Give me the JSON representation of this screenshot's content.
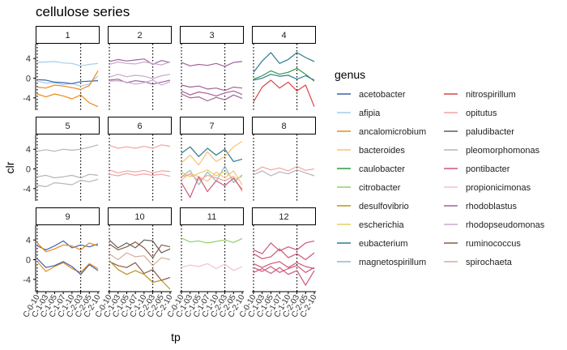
{
  "chart_data": {
    "type": "line",
    "title": "cellulose series",
    "xlabel": "tp",
    "ylabel": "clr",
    "ylim": [
      -6.5,
      7
    ],
    "y_ticks": [
      -4,
      0,
      4
    ],
    "x_categories": [
      "C-0-10",
      "C-1-03",
      "C-1-05",
      "C-1-07",
      "C-1-10",
      "C-2-03",
      "C-2-05",
      "C-2-10"
    ],
    "x_tick_labels": [
      "C-0-10",
      "C-1-03",
      "C-1-05",
      "C-1-07",
      "C-1-10",
      "C-2-03",
      "C-2-05",
      "C-2-10"
    ],
    "vlines": [
      "C-0-10",
      "C-2-03"
    ],
    "legend": {
      "title": "genus",
      "entries": [
        {
          "label": "acetobacter",
          "color": "#3B62A8"
        },
        {
          "label": "afipia",
          "color": "#A6CCE8"
        },
        {
          "label": "ancalomicrobium",
          "color": "#EE8A1A"
        },
        {
          "label": "bacteroides",
          "color": "#F8C27A"
        },
        {
          "label": "caulobacter",
          "color": "#2E9A44"
        },
        {
          "label": "citrobacter",
          "color": "#92D06A"
        },
        {
          "label": "desulfovibrio",
          "color": "#B8951E"
        },
        {
          "label": "escherichia",
          "color": "#E6D060"
        },
        {
          "label": "eubacterium",
          "color": "#2C7B8F"
        },
        {
          "label": "magnetospirillum",
          "color": "#8EBCC6"
        },
        {
          "label": "nitrospirillum",
          "color": "#D94646"
        },
        {
          "label": "opitutus",
          "color": "#F4A3A3"
        },
        {
          "label": "paludibacter",
          "color": "#5E5E5E"
        },
        {
          "label": "pleomorphomonas",
          "color": "#B5B5B5"
        },
        {
          "label": "pontibacter",
          "color": "#CF5778"
        },
        {
          "label": "propionicimonas",
          "color": "#F5BFD0"
        },
        {
          "label": "rhodoblastus",
          "color": "#A0649A"
        },
        {
          "label": "rhodopseudomonas",
          "color": "#C9A8CC"
        },
        {
          "label": "ruminococcus",
          "color": "#8A5A48"
        },
        {
          "label": "spirochaeta",
          "color": "#D4AE9C"
        }
      ]
    },
    "panels": [
      {
        "label": "1",
        "series": [
          {
            "genus": "afipia",
            "values": [
              3.2,
              3.3,
              3.4,
              3.1,
              3.0,
              2.5,
              2.8,
              3.0
            ]
          },
          {
            "genus": "afipia",
            "values": [
              -0.6,
              -1.0,
              -0.9,
              -1.3,
              -1.1,
              -1.6,
              -1.2,
              0.5
            ]
          },
          {
            "genus": "acetobacter",
            "values": [
              -0.3,
              -0.4,
              -0.8,
              -0.9,
              -1.1,
              -0.7,
              -0.6,
              -0.5
            ]
          },
          {
            "genus": "ancalomicrobium",
            "values": [
              -1.8,
              -2.0,
              -1.4,
              -1.6,
              -1.9,
              -2.3,
              -1.5,
              1.5
            ]
          },
          {
            "genus": "ancalomicrobium",
            "values": [
              -3.2,
              -3.8,
              -3.2,
              -3.6,
              -4.2,
              -3.4,
              -5.0,
              -5.8
            ]
          }
        ]
      },
      {
        "label": "2",
        "series": [
          {
            "genus": "rhodoblastus",
            "values": [
              3.4,
              3.8,
              3.5,
              3.7,
              3.9,
              2.8,
              3.6,
              3.2
            ]
          },
          {
            "genus": "rhodopseudomonas",
            "values": [
              2.8,
              3.3,
              3.0,
              2.9,
              3.3,
              3.0,
              2.7,
              3.3
            ]
          },
          {
            "genus": "rhodopseudomonas",
            "values": [
              0.2,
              0.8,
              0.3,
              0.6,
              0.4,
              -0.1,
              0.5,
              0.8
            ]
          },
          {
            "genus": "rhodoblastus",
            "values": [
              -0.4,
              -0.2,
              -0.9,
              -0.5,
              -0.7,
              -1.2,
              -0.8,
              -0.4
            ]
          },
          {
            "genus": "rhodopseudomonas",
            "values": [
              -0.6,
              -0.5,
              -0.8,
              -1.2,
              -0.9,
              -0.4,
              -1.4,
              -0.7
            ]
          }
        ]
      },
      {
        "label": "3",
        "series": [
          {
            "genus": "rhodoblastus",
            "values": [
              3.2,
              2.5,
              2.8,
              2.6,
              3.0,
              2.4,
              3.2,
              3.4
            ]
          },
          {
            "genus": "rhodoblastus",
            "values": [
              -1.4,
              -1.8,
              -1.6,
              -2.2,
              -2.0,
              -2.5,
              -1.8,
              -2.0
            ]
          },
          {
            "genus": "rhodoblastus",
            "values": [
              -2.6,
              -3.4,
              -2.8,
              -3.1,
              -3.6,
              -3.0,
              -2.6,
              -3.3
            ]
          },
          {
            "genus": "rhodoblastus",
            "values": [
              -3.2,
              -4.0,
              -3.8,
              -4.6,
              -3.9,
              -4.4,
              -3.4,
              -4.1
            ]
          }
        ]
      },
      {
        "label": "4",
        "series": [
          {
            "genus": "eubacterium",
            "values": [
              1.2,
              3.5,
              5.2,
              3.0,
              3.8,
              5.2,
              4.2,
              3.4
            ]
          },
          {
            "genus": "caulobacter",
            "values": [
              -0.2,
              0.5,
              1.5,
              0.8,
              1.2,
              2.0,
              0.8,
              -0.6
            ]
          },
          {
            "genus": "eubacterium",
            "values": [
              -0.4,
              0.0,
              0.8,
              0.4,
              0.6,
              -0.2,
              0.5,
              -0.4
            ]
          },
          {
            "genus": "nitrospirillum",
            "values": [
              -4.8,
              -1.8,
              -0.4,
              -2.0,
              -0.8,
              -2.6,
              -1.4,
              -5.8
            ]
          }
        ]
      },
      {
        "label": "5",
        "series": [
          {
            "genus": "pleomorphomonas",
            "values": [
              3.6,
              3.9,
              3.6,
              4.0,
              3.8,
              4.0,
              4.4,
              4.9
            ]
          },
          {
            "genus": "pleomorphomonas",
            "values": [
              -1.6,
              -1.3,
              -1.8,
              -1.6,
              -1.3,
              -1.8,
              -1.1,
              -1.3
            ]
          },
          {
            "genus": "pleomorphomonas",
            "values": [
              -3.3,
              -3.6,
              -2.8,
              -3.0,
              -3.2,
              -2.3,
              -2.6,
              -2.1
            ]
          }
        ]
      },
      {
        "label": "6",
        "series": [
          {
            "genus": "opitutus",
            "values": [
              4.8,
              4.2,
              4.5,
              4.2,
              4.6,
              4.2,
              4.9,
              4.6
            ]
          },
          {
            "genus": "opitutus",
            "values": [
              -0.2,
              -0.8,
              -0.4,
              -0.6,
              -0.3,
              -0.8,
              -0.4,
              -0.5
            ]
          },
          {
            "genus": "opitutus",
            "values": [
              -1.1,
              -1.4,
              -0.9,
              -1.3,
              -1.0,
              -1.3,
              -1.1,
              -1.5
            ]
          }
        ]
      },
      {
        "label": "7",
        "series": [
          {
            "genus": "eubacterium",
            "values": [
              3.2,
              4.5,
              2.5,
              4.2,
              2.8,
              4.0,
              1.5,
              2.0
            ]
          },
          {
            "genus": "bacteroides",
            "values": [
              1.2,
              2.8,
              0.8,
              3.5,
              1.5,
              2.5,
              4.5,
              5.6
            ]
          },
          {
            "genus": "magnetospirillum",
            "values": [
              -1.6,
              -0.3,
              -3.2,
              -0.6,
              -2.5,
              0.6,
              -2.8,
              -1.2
            ]
          },
          {
            "genus": "bacteroides",
            "values": [
              -2.2,
              -0.9,
              -1.6,
              -2.5,
              -0.6,
              -1.8,
              -0.4,
              -3.2
            ]
          },
          {
            "genus": "escherichia",
            "values": [
              -0.6,
              -1.6,
              -0.9,
              -0.2,
              -1.4,
              -0.5,
              -2.0,
              -1.6
            ]
          },
          {
            "genus": "opitutus",
            "values": [
              -1.6,
              -1.1,
              -2.3,
              -1.3,
              -1.8,
              -2.4,
              -1.5,
              -4.6
            ]
          },
          {
            "genus": "pontibacter",
            "values": [
              -2.8,
              -5.8,
              -1.6,
              -4.6,
              -2.4,
              -3.4,
              -1.9,
              -4.2
            ]
          }
        ]
      },
      {
        "label": "8",
        "series": [
          {
            "genus": "opitutus",
            "values": [
              -0.6,
              0.4,
              -0.2,
              0.2,
              -0.4,
              0.5,
              -0.3,
              0.0
            ]
          },
          {
            "genus": "pleomorphomonas",
            "values": [
              -1.2,
              -0.4,
              -1.4,
              -0.6,
              -1.0,
              -0.2,
              -0.8,
              -1.4
            ]
          }
        ]
      },
      {
        "label": "9",
        "series": [
          {
            "genus": "acetobacter",
            "values": [
              2.8,
              2.0,
              2.8,
              3.8,
              2.4,
              3.0,
              2.6,
              3.2
            ]
          },
          {
            "genus": "ancalomicrobium",
            "values": [
              3.4,
              1.6,
              2.2,
              3.0,
              2.8,
              2.0,
              3.4,
              2.8
            ]
          },
          {
            "genus": "ancalomicrobium",
            "values": [
              -0.4,
              -2.4,
              -1.4,
              -0.6,
              -1.8,
              -2.6,
              -0.8,
              -1.8
            ]
          },
          {
            "genus": "acetobacter",
            "values": [
              0.2,
              -1.6,
              -1.2,
              -0.4,
              -1.4,
              -3.0,
              -1.0,
              -2.2
            ]
          }
        ]
      },
      {
        "label": "10",
        "series": [
          {
            "genus": "paludibacter",
            "values": [
              4.0,
              2.4,
              3.4,
              2.4,
              4.0,
              3.8,
              1.4,
              2.2
            ]
          },
          {
            "genus": "ruminococcus",
            "values": [
              3.2,
              2.0,
              2.6,
              3.6,
              2.4,
              0.4,
              3.0,
              2.6
            ]
          },
          {
            "genus": "spirochaeta",
            "values": [
              1.2,
              0.0,
              1.4,
              0.6,
              0.8,
              -1.2,
              0.4,
              0.0
            ]
          },
          {
            "genus": "ruminococcus",
            "values": [
              -0.4,
              -1.2,
              -1.6,
              -0.6,
              -2.8,
              -2.0,
              -4.2,
              -3.6
            ]
          },
          {
            "genus": "desulfovibrio",
            "values": [
              -0.2,
              -2.0,
              -3.0,
              -2.2,
              -3.0,
              -4.6,
              -4.2,
              -6.0
            ]
          }
        ]
      },
      {
        "label": "11",
        "series": [
          {
            "genus": "citrobacter",
            "values": [
              4.4,
              3.6,
              3.8,
              3.4,
              3.7,
              4.0,
              3.5,
              4.3
            ]
          },
          {
            "genus": "propionicimonas",
            "values": [
              -1.6,
              -1.1,
              -1.4,
              -0.8,
              -1.8,
              -0.9,
              -2.2,
              -1.4
            ]
          }
        ]
      },
      {
        "label": "12",
        "series": [
          {
            "genus": "pontibacter",
            "values": [
              2.0,
              1.2,
              3.4,
              1.8,
              2.6,
              2.0,
              3.4,
              3.8
            ]
          },
          {
            "genus": "pontibacter",
            "values": [
              1.2,
              0.2,
              0.6,
              2.2,
              0.4,
              1.2,
              0.0,
              1.4
            ]
          },
          {
            "genus": "pontibacter",
            "values": [
              -0.8,
              -1.6,
              -0.8,
              -0.4,
              -1.6,
              -0.6,
              -1.4,
              -1.8
            ]
          },
          {
            "genus": "pontibacter",
            "values": [
              -1.6,
              -2.4,
              -1.4,
              -2.6,
              -1.8,
              -1.2,
              -2.6,
              -1.6
            ]
          },
          {
            "genus": "pontibacter",
            "values": [
              -2.6,
              -1.8,
              -2.8,
              -1.6,
              -3.0,
              -2.2,
              -5.2,
              -2.2
            ]
          }
        ]
      }
    ]
  }
}
